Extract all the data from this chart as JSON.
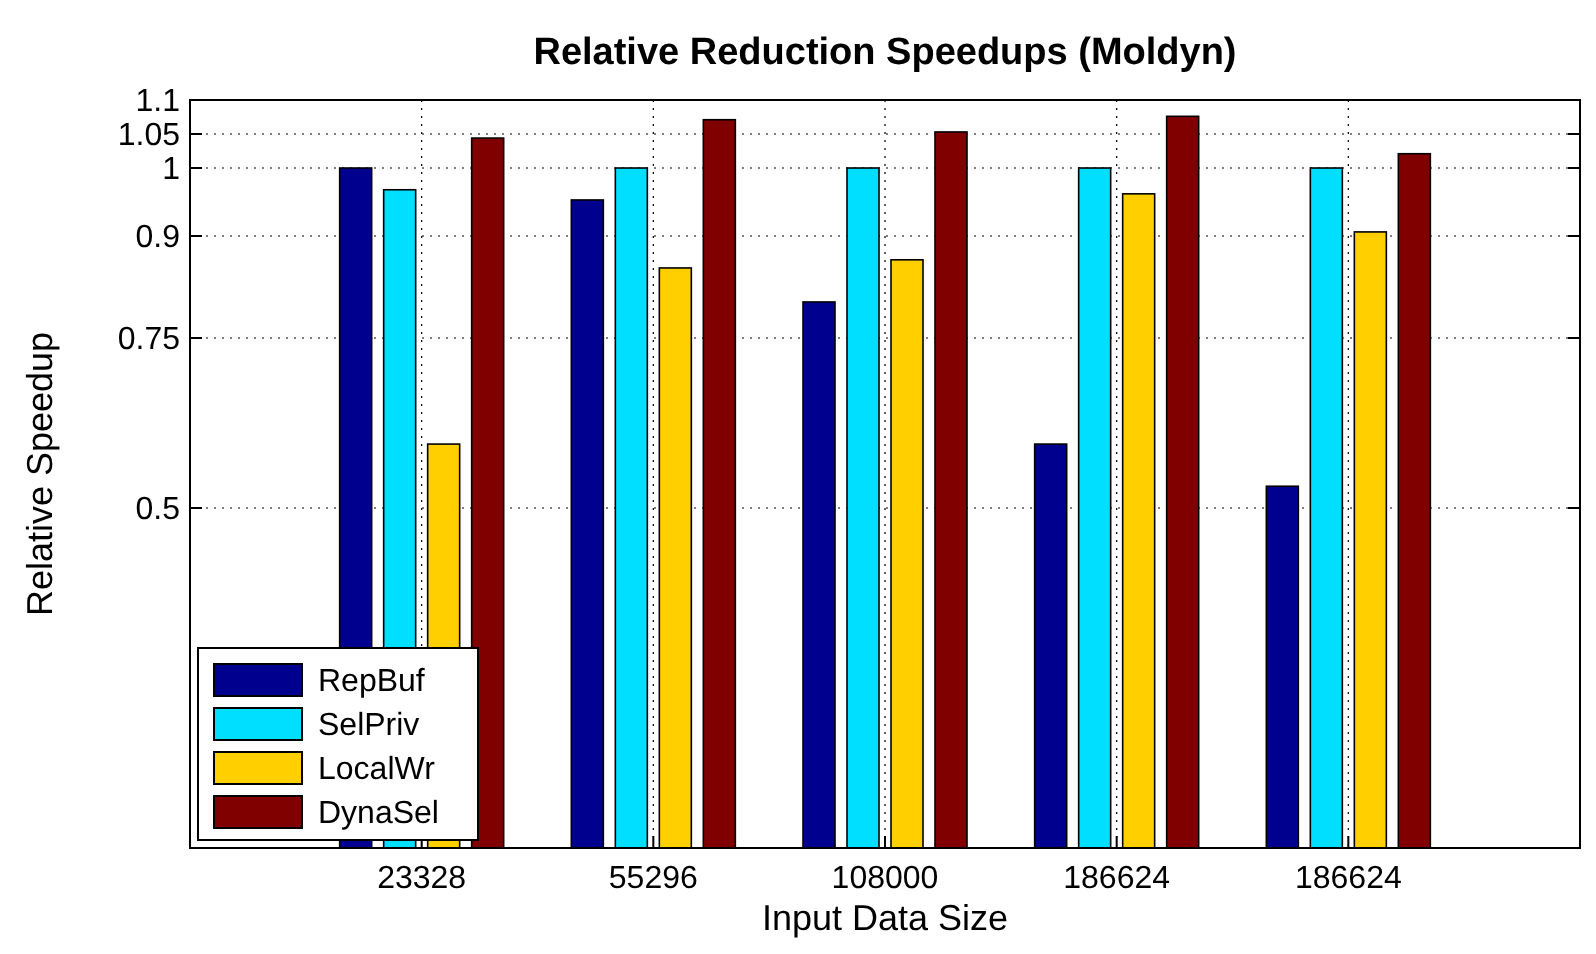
{
  "chart_data": {
    "type": "bar",
    "title": "Relative Reduction Speedups (Moldyn)",
    "xlabel": "Input Data Size",
    "ylabel": "Relative Speedup",
    "categories": [
      "23328",
      "55296",
      "108000",
      "186624",
      "186624"
    ],
    "series": [
      {
        "name": "RepBuf",
        "color": "#00008f",
        "values": [
          1.0,
          0.953,
          0.803,
          0.594,
          0.532
        ]
      },
      {
        "name": "SelPriv",
        "color": "#00dfff",
        "values": [
          0.968,
          1.0,
          1.0,
          1.0,
          1.0
        ]
      },
      {
        "name": "LocalWr",
        "color": "#ffcf00",
        "values": [
          0.594,
          0.853,
          0.865,
          0.962,
          0.906
        ]
      },
      {
        "name": "DynaSel",
        "color": "#800000",
        "values": [
          1.044,
          1.071,
          1.053,
          1.076,
          1.021
        ]
      }
    ],
    "ylim": [
      0,
      1.1
    ],
    "yticks": [
      0.5,
      0.75,
      0.9,
      1,
      1.05,
      1.1
    ],
    "grid": true,
    "legend": "bottom left"
  }
}
